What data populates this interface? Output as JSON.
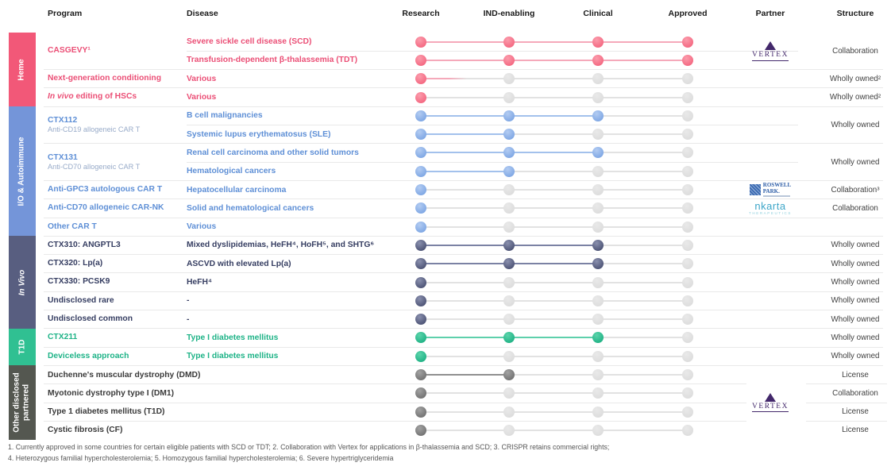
{
  "headers": {
    "program": "Program",
    "disease": "Disease",
    "stages": [
      "Research",
      "IND-enabling",
      "Clinical",
      "Approved"
    ],
    "partner": "Partner",
    "structure": "Structure"
  },
  "inactive": {
    "dot_light": "#e9e9e9",
    "dot": "#d9d9d9",
    "line": "#e2e2e2"
  },
  "sections": [
    {
      "label": "Heme",
      "italic": false,
      "colors": {
        "bar": "#f25878",
        "text": "#eb4f76",
        "sub": "#f19ab0",
        "dot_light": "#fb9cac",
        "dot": "#f25874",
        "line": "#f5a9ba"
      },
      "programs": [
        {
          "row": 0,
          "span": 2,
          "name": "CASGEVY¹"
        },
        {
          "row": 2,
          "span": 1,
          "name": "Next-generation conditioning"
        },
        {
          "row": 3,
          "span": 1,
          "name": "editing of HSCs",
          "italic_prefix": "In vivo"
        }
      ],
      "rows": [
        {
          "row": 0,
          "disease": "Severe sickle cell disease (SCD)",
          "stages": 4
        },
        {
          "row": 1,
          "disease": "Transfusion-dependent β-thalassemia (TDT)",
          "stages": 4
        },
        {
          "row": 2,
          "disease": "Various",
          "stages": 1,
          "partial": 0.4
        },
        {
          "row": 3,
          "disease": "Various",
          "stages": 1
        }
      ]
    },
    {
      "label": "I/O & Autoimmune",
      "italic": false,
      "colors": {
        "bar": "#7495d9",
        "text": "#5e8fd6",
        "sub": "#98abc9",
        "dot_light": "#b3ccf2",
        "dot": "#6f9ce0",
        "line": "#a3c1ec"
      },
      "programs": [
        {
          "row": 4,
          "span": 2,
          "name": "CTX112",
          "sub": "Anti-CD19 allogeneic CAR T"
        },
        {
          "row": 6,
          "span": 2,
          "name": "CTX131",
          "sub": "Anti-CD70 allogeneic CAR T"
        },
        {
          "row": 8,
          "span": 1,
          "name": "Anti-GPC3 autologous CAR T"
        },
        {
          "row": 9,
          "span": 1,
          "name": "Anti-CD70 allogeneic CAR-NK"
        },
        {
          "row": 10,
          "span": 1,
          "name": "Other CAR T"
        }
      ],
      "rows": [
        {
          "row": 4,
          "disease": "B cell malignancies",
          "stages": 3
        },
        {
          "row": 5,
          "disease": "Systemic lupus erythematosus (SLE)",
          "stages": 2
        },
        {
          "row": 6,
          "disease": "Renal cell carcinoma and other solid tumors",
          "stages": 3
        },
        {
          "row": 7,
          "disease": "Hematological cancers",
          "stages": 2
        },
        {
          "row": 8,
          "disease": "Hepatocellular carcinoma",
          "stages": 1
        },
        {
          "row": 9,
          "disease": "Solid and hematological cancers",
          "stages": 1
        },
        {
          "row": 10,
          "disease": "Various",
          "stages": 1
        }
      ]
    },
    {
      "label": "In Vivo",
      "italic": true,
      "colors": {
        "bar": "#585e80",
        "text": "#353d61",
        "sub": "#9095ad",
        "dot_light": "#8a90ae",
        "dot": "#3a4164",
        "line": "#7b82a4"
      },
      "programs": [
        {
          "row": 11,
          "span": 1,
          "name": "CTX310: ANGPTL3"
        },
        {
          "row": 12,
          "span": 1,
          "name": "CTX320: Lp(a)"
        },
        {
          "row": 13,
          "span": 1,
          "name": "CTX330: PCSK9"
        },
        {
          "row": 14,
          "span": 1,
          "name": "Undisclosed rare"
        },
        {
          "row": 15,
          "span": 1,
          "name": "Undisclosed common"
        }
      ],
      "rows": [
        {
          "row": 11,
          "disease": "Mixed dyslipidemias, HeFH⁴, HoFH⁵, and SHTG⁶",
          "stages": 3
        },
        {
          "row": 12,
          "disease": "ASCVD with elevated Lp(a)",
          "stages": 3
        },
        {
          "row": 13,
          "disease": "HeFH⁴",
          "stages": 1
        },
        {
          "row": 14,
          "disease": "-",
          "stages": 1
        },
        {
          "row": 15,
          "disease": "-",
          "stages": 1
        }
      ]
    },
    {
      "label": "T1D",
      "italic": false,
      "colors": {
        "bar": "#30c092",
        "text": "#1eb387",
        "sub": "#7ed4b9",
        "dot_light": "#5bd4ab",
        "dot": "#0fa87a",
        "line": "#5ed0ac"
      },
      "programs": [
        {
          "row": 16,
          "span": 1,
          "name": "CTX211"
        },
        {
          "row": 17,
          "span": 1,
          "name": "Deviceless approach"
        }
      ],
      "rows": [
        {
          "row": 16,
          "disease": "Type I diabetes mellitus",
          "stages": 3
        },
        {
          "row": 17,
          "disease": "Type I diabetes mellitus",
          "stages": 1
        }
      ]
    },
    {
      "label": "Other disclosed partnered",
      "italic": false,
      "colors": {
        "bar": "#545750",
        "text": "#3a3a3a",
        "sub": "#8a8a8a",
        "dot_light": "#a2a2a2",
        "dot": "#646464",
        "line": "#909090"
      },
      "programs": [],
      "rows": [
        {
          "row": 18,
          "program": "Duchenne's muscular dystrophy (DMD)",
          "stages": 2
        },
        {
          "row": 19,
          "program": "Myotonic dystrophy type I (DM1)",
          "stages": 1
        },
        {
          "row": 20,
          "program": "Type 1 diabetes mellitus (T1D)",
          "stages": 1
        },
        {
          "row": 21,
          "program": "Cystic fibrosis (CF)",
          "stages": 1
        }
      ]
    }
  ],
  "partners": [
    {
      "row": 0,
      "span": 2,
      "type": "vertex"
    },
    {
      "row": 8,
      "span": 1,
      "type": "roswell"
    },
    {
      "row": 9,
      "span": 1,
      "type": "nkarta"
    },
    {
      "row": 18,
      "span": 4,
      "type": "vertex"
    }
  ],
  "logos": {
    "vertex": {
      "text": "VERTEX"
    },
    "roswell": {
      "line1": "ROSWELL",
      "line2": "PARK."
    },
    "nkarta": {
      "name": "nkarta",
      "sub": "THERAPEUTICS"
    }
  },
  "structures": [
    {
      "row": 0,
      "span": 2,
      "label": "Collaboration"
    },
    {
      "row": 2,
      "span": 1,
      "label": "Wholly owned²"
    },
    {
      "row": 3,
      "span": 1,
      "label": "Wholly owned²"
    },
    {
      "row": 4,
      "span": 2,
      "label": "Wholly owned"
    },
    {
      "row": 6,
      "span": 2,
      "label": "Wholly owned"
    },
    {
      "row": 8,
      "span": 1,
      "label": "Collaboration³"
    },
    {
      "row": 9,
      "span": 1,
      "label": "Collaboration"
    },
    {
      "row": 11,
      "span": 1,
      "label": "Wholly owned"
    },
    {
      "row": 12,
      "span": 1,
      "label": "Wholly owned"
    },
    {
      "row": 13,
      "span": 1,
      "label": "Wholly owned"
    },
    {
      "row": 14,
      "span": 1,
      "label": "Wholly owned"
    },
    {
      "row": 15,
      "span": 1,
      "label": "Wholly owned"
    },
    {
      "row": 16,
      "span": 1,
      "label": "Wholly owned"
    },
    {
      "row": 17,
      "span": 1,
      "label": "Wholly owned"
    },
    {
      "row": 18,
      "span": 1,
      "label": "License"
    },
    {
      "row": 19,
      "span": 1,
      "label": "Collaboration"
    },
    {
      "row": 20,
      "span": 1,
      "label": "License"
    },
    {
      "row": 21,
      "span": 1,
      "label": "License"
    }
  ],
  "footnotes": [
    "1. Currently approved in some countries for certain eligible patients with SCD or TDT; 2. Collaboration with Vertex for applications in β-thalassemia and SCD; 3. CRISPR retains commercial rights;",
    "4. Heterozygous familial hypercholesterolemia; 5. Homozygous familial hypercholesterolemia; 6. Severe hypertriglyceridemia"
  ]
}
